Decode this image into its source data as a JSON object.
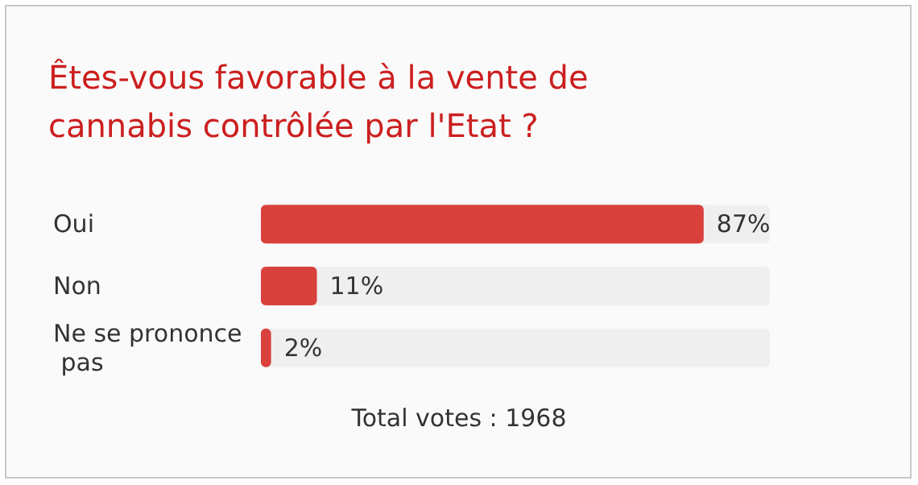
{
  "chart_data": {
    "type": "bar",
    "orientation": "horizontal",
    "title": "Êtes-vous favorable à la vente de cannabis contrôlée par l'Etat ?",
    "categories": [
      "Oui",
      "Non",
      "Ne se prononce pas"
    ],
    "values": [
      87,
      11,
      2
    ],
    "value_labels": [
      "87%",
      "11%",
      "2%"
    ],
    "color": "#d9413c",
    "xlim": [
      0,
      100
    ],
    "tick_labels": "y",
    "grid": false,
    "annotations": [
      "Total votes : 1968"
    ]
  }
}
